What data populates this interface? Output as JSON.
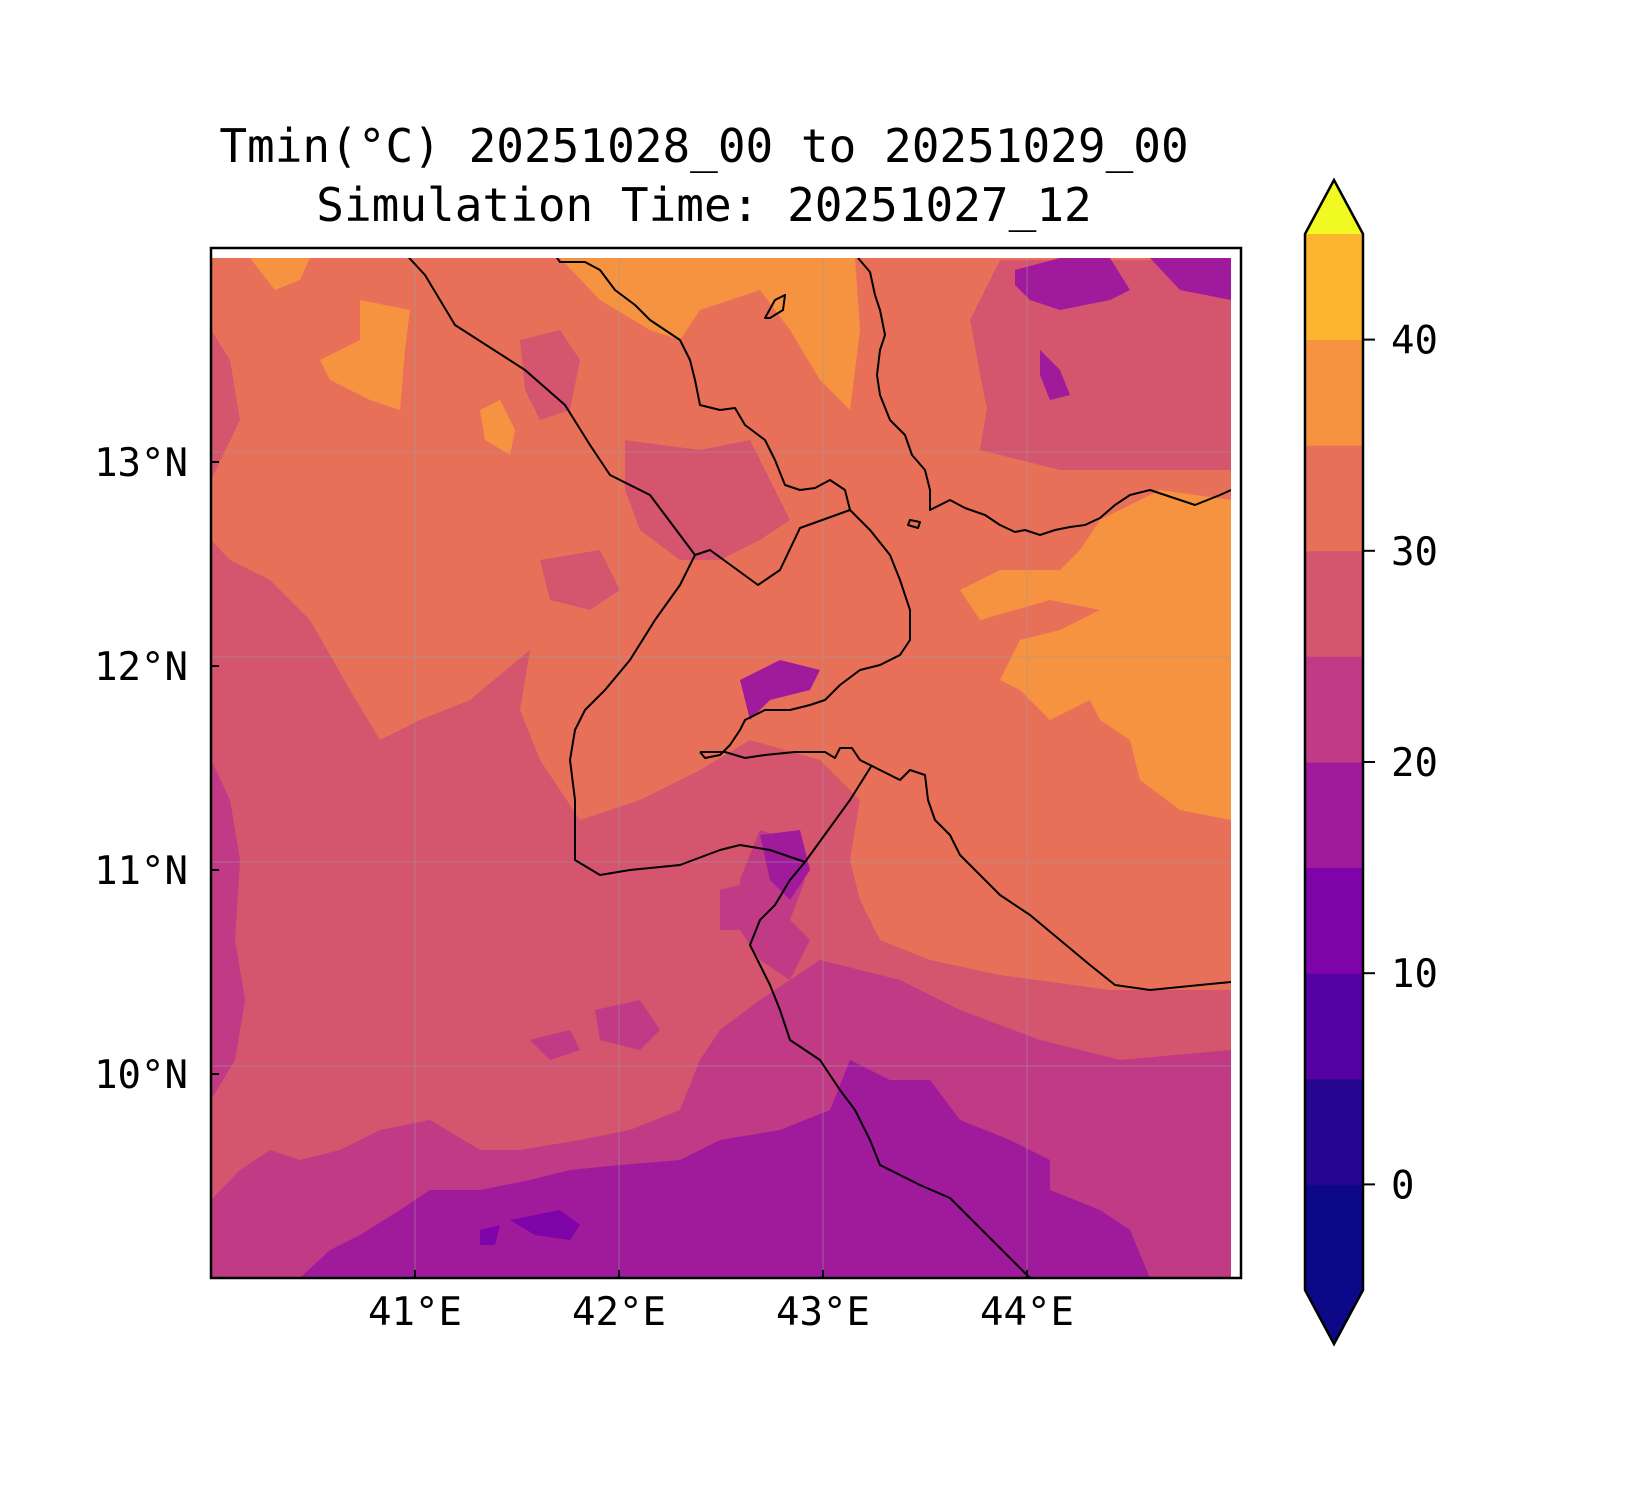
{
  "title": {
    "line1": "Tmin(°C) 20251028_00 to 20251029_00",
    "line2": "Simulation Time: 20251027_12"
  },
  "map": {
    "type": "filled-contour",
    "variable": "Tmin",
    "unit": "°C",
    "lon_range": [
      40.0,
      45.0
    ],
    "lat_range": [
      9.0,
      14.0
    ],
    "lon_ticks": [
      {
        "value": 41,
        "label": "41°E"
      },
      {
        "value": 42,
        "label": "42°E"
      },
      {
        "value": 43,
        "label": "43°E"
      },
      {
        "value": 44,
        "label": "44°E"
      }
    ],
    "lat_ticks": [
      {
        "value": 13,
        "label": "13°N"
      },
      {
        "value": 12,
        "label": "12°N"
      },
      {
        "value": 11,
        "label": "11°N"
      },
      {
        "value": 10,
        "label": "10°N"
      }
    ],
    "grid": true,
    "colormap": "plasma",
    "level_colors": {
      "10-15": "#a01a9c",
      "15-20": "#c03a85",
      "20-25": "#d5546e",
      "25-30": "#e87059",
      "30-35": "#f69341",
      "35-40": "#fdb42f"
    }
  },
  "colorbar": {
    "levels": [
      -5,
      0,
      5,
      10,
      15,
      20,
      25,
      30,
      35,
      40,
      45
    ],
    "colors": [
      "#0d0887",
      "#270591",
      "#5402a3",
      "#7e03a8",
      "#a01a9c",
      "#c03a85",
      "#d5546e",
      "#e87059",
      "#f69341",
      "#fdb42f",
      "#f3e026"
    ],
    "under_color": "#0d0887",
    "over_color": "#f0f921",
    "extend": "both",
    "ticks": [
      {
        "value": 0,
        "label": "0"
      },
      {
        "value": 10,
        "label": "10"
      },
      {
        "value": 20,
        "label": "20"
      },
      {
        "value": 30,
        "label": "30"
      },
      {
        "value": 40,
        "label": "40"
      }
    ]
  }
}
